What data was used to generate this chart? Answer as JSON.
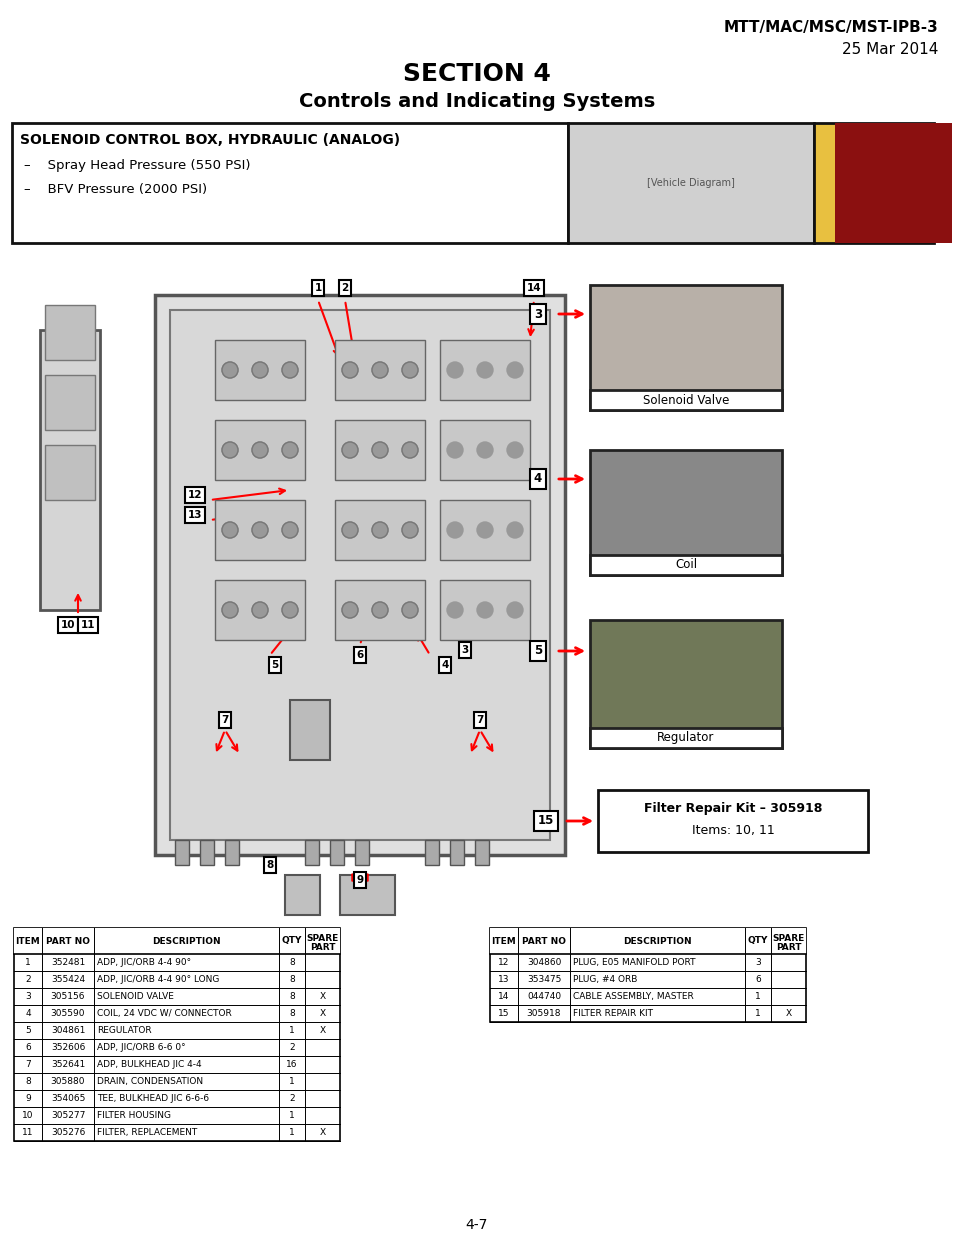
{
  "header_right_line1": "MTT/MAC/MSC/MST-IPB-3",
  "header_right_line2": "25 Mar 2014",
  "section_title": "SECTION 4",
  "section_subtitle": "Controls and Indicating Systems",
  "box_title": "SOLENOID CONTROL BOX, HYDRAULIC (ANALOG)",
  "box_bullets": [
    "–    Spray Head Pressure (550 PSI)",
    "–    BFV Pressure (2000 PSI)"
  ],
  "sidebar_items": [
    {
      "label": "Solenoid Valve",
      "item": "3",
      "color": "#b0b0b0"
    },
    {
      "label": "Coil",
      "item": "4",
      "color": "#909090"
    },
    {
      "label": "Regulator",
      "item": "5",
      "color": "#808060"
    }
  ],
  "filter_kit_title": "Filter Repair Kit – 305918",
  "filter_kit_items": "Items: 10, 11",
  "filter_kit_item_num": "15",
  "page_number": "4-7",
  "table1_headers": [
    "ITEM",
    "PART NO",
    "DESCRIPTION",
    "QTY",
    "SPARE\nPART"
  ],
  "table1_col_widths": [
    28,
    52,
    185,
    26,
    35
  ],
  "table1_rows": [
    [
      "1",
      "352481",
      "ADP, JIC/ORB 4-4 90°",
      "8",
      ""
    ],
    [
      "2",
      "355424",
      "ADP, JIC/ORB 4-4 90° LONG",
      "8",
      ""
    ],
    [
      "3",
      "305156",
      "SOLENOID VALVE",
      "8",
      "X"
    ],
    [
      "4",
      "305590",
      "COIL, 24 VDC W/ CONNECTOR",
      "8",
      "X"
    ],
    [
      "5",
      "304861",
      "REGULATOR",
      "1",
      "X"
    ],
    [
      "6",
      "352606",
      "ADP, JIC/ORB 6-6 0°",
      "2",
      ""
    ],
    [
      "7",
      "352641",
      "ADP, BULKHEAD JIC 4-4",
      "16",
      ""
    ],
    [
      "8",
      "305880",
      "DRAIN, CONDENSATION",
      "1",
      ""
    ],
    [
      "9",
      "354065",
      "TEE, BULKHEAD JIC 6-6-6",
      "2",
      ""
    ],
    [
      "10",
      "305277",
      "FILTER HOUSING",
      "1",
      ""
    ],
    [
      "11",
      "305276",
      "FILTER, REPLACEMENT",
      "1",
      "X"
    ]
  ],
  "table2_headers": [
    "ITEM",
    "PART NO",
    "DESCRIPTION",
    "QTY",
    "SPARE\nPART"
  ],
  "table2_col_widths": [
    28,
    52,
    175,
    26,
    35
  ],
  "table2_rows": [
    [
      "12",
      "304860",
      "PLUG, E05 MANIFOLD PORT",
      "3",
      ""
    ],
    [
      "13",
      "353475",
      "PLUG, #4 ORB",
      "6",
      ""
    ],
    [
      "14",
      "044740",
      "CABLE ASSEMBLY, MASTER",
      "1",
      ""
    ],
    [
      "15",
      "305918",
      "FILTER REPAIR KIT",
      "1",
      "X"
    ]
  ],
  "bg_color": "#ffffff",
  "text_color": "#000000",
  "red_color": "#cc0000",
  "red_accent_color": "#8B1010",
  "diagram_bg": "#e8e8e8",
  "diagram_border": "#444444"
}
